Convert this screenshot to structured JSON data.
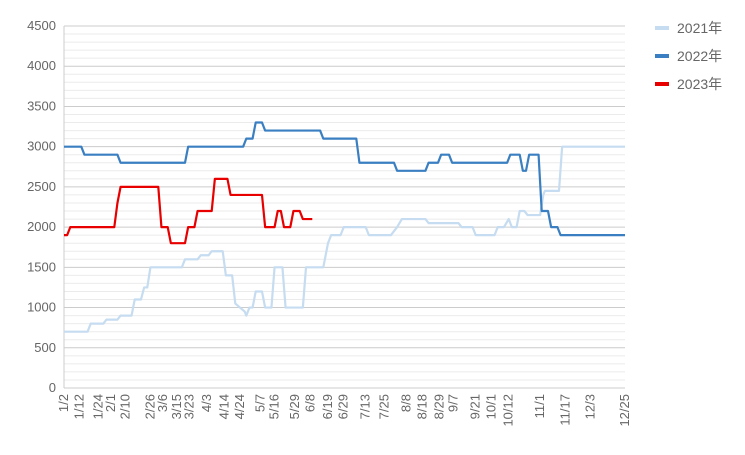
{
  "chart_data": {
    "type": "line",
    "xlabel": "",
    "ylabel": "",
    "ylim": [
      0,
      4500
    ],
    "ytick_step": 500,
    "yminor_step": 100,
    "y_ticks": [
      "0",
      "500",
      "1000",
      "1500",
      "2000",
      "2500",
      "3000",
      "3500",
      "4000",
      "4500"
    ],
    "x_domain_days": [
      0,
      357
    ],
    "x_ticks": [
      {
        "label": "1/2",
        "day": 0
      },
      {
        "label": "1/12",
        "day": 10
      },
      {
        "label": "1/24",
        "day": 22
      },
      {
        "label": "2/1",
        "day": 30
      },
      {
        "label": "2/10",
        "day": 39
      },
      {
        "label": "2/26",
        "day": 55
      },
      {
        "label": "3/6",
        "day": 63
      },
      {
        "label": "3/15",
        "day": 72
      },
      {
        "label": "3/23",
        "day": 80
      },
      {
        "label": "4/3",
        "day": 91
      },
      {
        "label": "4/14",
        "day": 102
      },
      {
        "label": "4/24",
        "day": 112
      },
      {
        "label": "5/7",
        "day": 125
      },
      {
        "label": "5/16",
        "day": 134
      },
      {
        "label": "5/29",
        "day": 147
      },
      {
        "label": "6/8",
        "day": 157
      },
      {
        "label": "6/19",
        "day": 168
      },
      {
        "label": "6/29",
        "day": 178
      },
      {
        "label": "7/13",
        "day": 192
      },
      {
        "label": "7/25",
        "day": 204
      },
      {
        "label": "8/8",
        "day": 218
      },
      {
        "label": "8/18",
        "day": 228
      },
      {
        "label": "8/29",
        "day": 239
      },
      {
        "label": "9/7",
        "day": 248
      },
      {
        "label": "9/21",
        "day": 262
      },
      {
        "label": "10/1",
        "day": 272
      },
      {
        "label": "10/12",
        "day": 283
      },
      {
        "label": "11/1",
        "day": 303
      },
      {
        "label": "11/17",
        "day": 319
      },
      {
        "label": "12/3",
        "day": 335
      },
      {
        "label": "12/25",
        "day": 357
      }
    ],
    "legend_position": "right",
    "series": [
      {
        "name": "2021年",
        "color": "#c6dcf0",
        "points": [
          [
            0,
            700
          ],
          [
            15,
            700
          ],
          [
            17,
            800
          ],
          [
            25,
            800
          ],
          [
            27,
            850
          ],
          [
            34,
            850
          ],
          [
            36,
            900
          ],
          [
            43,
            900
          ],
          [
            45,
            1100
          ],
          [
            49,
            1100
          ],
          [
            51,
            1250
          ],
          [
            53,
            1250
          ],
          [
            55,
            1500
          ],
          [
            75,
            1500
          ],
          [
            77,
            1600
          ],
          [
            85,
            1600
          ],
          [
            87,
            1650
          ],
          [
            92,
            1650
          ],
          [
            94,
            1700
          ],
          [
            101,
            1700
          ],
          [
            103,
            1400
          ],
          [
            107,
            1400
          ],
          [
            109,
            1050
          ],
          [
            115,
            950
          ],
          [
            116,
            900
          ],
          [
            118,
            1000
          ],
          [
            120,
            1000
          ],
          [
            122,
            1200
          ],
          [
            126,
            1200
          ],
          [
            128,
            1000
          ],
          [
            132,
            1000
          ],
          [
            134,
            1500
          ],
          [
            139,
            1500
          ],
          [
            141,
            1000
          ],
          [
            152,
            1000
          ],
          [
            154,
            1500
          ],
          [
            165,
            1500
          ],
          [
            168,
            1800
          ],
          [
            170,
            1900
          ],
          [
            176,
            1900
          ],
          [
            178,
            2000
          ],
          [
            192,
            2000
          ],
          [
            194,
            1900
          ],
          [
            208,
            1900
          ],
          [
            212,
            2000
          ],
          [
            215,
            2100
          ],
          [
            230,
            2100
          ],
          [
            232,
            2050
          ],
          [
            251,
            2050
          ],
          [
            253,
            2000
          ],
          [
            260,
            2000
          ],
          [
            262,
            1900
          ],
          [
            274,
            1900
          ],
          [
            276,
            2000
          ],
          [
            280,
            2000
          ],
          [
            283,
            2100
          ],
          [
            285,
            2000
          ],
          [
            288,
            2000
          ],
          [
            290,
            2200
          ],
          [
            293,
            2200
          ],
          [
            295,
            2150
          ],
          [
            303,
            2150
          ],
          [
            305,
            2400
          ],
          [
            306,
            2450
          ],
          [
            315,
            2450
          ],
          [
            317,
            3000
          ],
          [
            335,
            3000
          ],
          [
            345,
            3000
          ],
          [
            357,
            3000
          ]
        ]
      },
      {
        "name": "2022年",
        "color": "#3a7fc1",
        "points": [
          [
            0,
            3000
          ],
          [
            11,
            3000
          ],
          [
            13,
            2900
          ],
          [
            34,
            2900
          ],
          [
            36,
            2800
          ],
          [
            77,
            2800
          ],
          [
            79,
            3000
          ],
          [
            114,
            3000
          ],
          [
            116,
            3100
          ],
          [
            120,
            3100
          ],
          [
            122,
            3300
          ],
          [
            126,
            3300
          ],
          [
            128,
            3200
          ],
          [
            163,
            3200
          ],
          [
            165,
            3100
          ],
          [
            186,
            3100
          ],
          [
            188,
            2800
          ],
          [
            210,
            2800
          ],
          [
            212,
            2700
          ],
          [
            230,
            2700
          ],
          [
            232,
            2800
          ],
          [
            238,
            2800
          ],
          [
            240,
            2900
          ],
          [
            245,
            2900
          ],
          [
            247,
            2800
          ],
          [
            282,
            2800
          ],
          [
            284,
            2900
          ],
          [
            290,
            2900
          ],
          [
            292,
            2700
          ],
          [
            294,
            2700
          ],
          [
            296,
            2900
          ],
          [
            302,
            2900
          ],
          [
            304,
            2200
          ],
          [
            308,
            2200
          ],
          [
            310,
            2000
          ],
          [
            314,
            2000
          ],
          [
            316,
            1900
          ],
          [
            322,
            1900
          ],
          [
            324,
            1900
          ],
          [
            357,
            1900
          ]
        ]
      },
      {
        "name": "2023年",
        "color": "#e80000",
        "points": [
          [
            0,
            1900
          ],
          [
            2,
            1900
          ],
          [
            4,
            2000
          ],
          [
            32,
            2000
          ],
          [
            34,
            2300
          ],
          [
            36,
            2500
          ],
          [
            60,
            2500
          ],
          [
            62,
            2000
          ],
          [
            66,
            2000
          ],
          [
            68,
            1800
          ],
          [
            77,
            1800
          ],
          [
            79,
            2000
          ],
          [
            83,
            2000
          ],
          [
            85,
            2200
          ],
          [
            94,
            2200
          ],
          [
            96,
            2600
          ],
          [
            104,
            2600
          ],
          [
            106,
            2400
          ],
          [
            126,
            2400
          ],
          [
            128,
            2000
          ],
          [
            134,
            2000
          ],
          [
            136,
            2200
          ],
          [
            138,
            2200
          ],
          [
            140,
            2000
          ],
          [
            144,
            2000
          ],
          [
            146,
            2200
          ],
          [
            150,
            2200
          ],
          [
            152,
            2100
          ],
          [
            158,
            2100
          ]
        ]
      }
    ]
  }
}
